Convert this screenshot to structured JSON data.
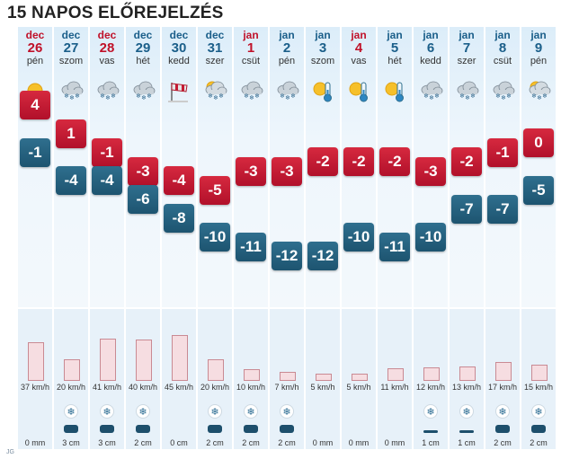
{
  "title": "15 NAPOS ELŐREJELZÉS",
  "footer_mark": "JG",
  "colors": {
    "hi": "#c41a33",
    "lo": "#24607f",
    "weekend": "#c0122a",
    "weekday": "#1b5f8a"
  },
  "days": [
    {
      "month": "dec",
      "day": "26",
      "weekday": "pén",
      "red": true,
      "icon": "sun-icon",
      "hi": "4",
      "lo": "-1",
      "wind": "37 km/h",
      "wind_v": 37,
      "precip": "0 mm",
      "precip_type": "none",
      "precip_v": 0
    },
    {
      "month": "dec",
      "day": "27",
      "weekday": "szom",
      "red": false,
      "icon": "cloud-snow-icon",
      "hi": "1",
      "lo": "-4",
      "wind": "20 km/h",
      "wind_v": 20,
      "precip": "3 cm",
      "precip_type": "snow",
      "precip_v": 3
    },
    {
      "month": "dec",
      "day": "28",
      "weekday": "vas",
      "red": true,
      "icon": "cloud-snow-icon",
      "hi": "-1",
      "lo": "-4",
      "wind": "41 km/h",
      "wind_v": 41,
      "precip": "3 cm",
      "precip_type": "snow",
      "precip_v": 3
    },
    {
      "month": "dec",
      "day": "29",
      "weekday": "hét",
      "red": false,
      "icon": "cloud-snow-icon",
      "hi": "-3",
      "lo": "-6",
      "wind": "40 km/h",
      "wind_v": 40,
      "precip": "2 cm",
      "precip_type": "snow",
      "precip_v": 2
    },
    {
      "month": "dec",
      "day": "30",
      "weekday": "kedd",
      "red": false,
      "icon": "windsock-icon",
      "hi": "-4",
      "lo": "-8",
      "wind": "45 km/h",
      "wind_v": 45,
      "precip": "0 cm",
      "precip_type": "none",
      "precip_v": 0
    },
    {
      "month": "dec",
      "day": "31",
      "weekday": "szer",
      "red": false,
      "icon": "sun-cloud-snow-icon",
      "hi": "-5",
      "lo": "-10",
      "wind": "20 km/h",
      "wind_v": 20,
      "precip": "2 cm",
      "precip_type": "snow",
      "precip_v": 2
    },
    {
      "month": "jan",
      "day": "1",
      "weekday": "csüt",
      "red": true,
      "icon": "cloud-snow-icon",
      "hi": "-3",
      "lo": "-11",
      "wind": "10 km/h",
      "wind_v": 10,
      "precip": "2 cm",
      "precip_type": "snow",
      "precip_v": 2
    },
    {
      "month": "jan",
      "day": "2",
      "weekday": "pén",
      "red": false,
      "icon": "cloud-snow-icon",
      "hi": "-3",
      "lo": "-12",
      "wind": "7 km/h",
      "wind_v": 7,
      "precip": "2 cm",
      "precip_type": "snow",
      "precip_v": 2
    },
    {
      "month": "jan",
      "day": "3",
      "weekday": "szom",
      "red": false,
      "icon": "cold-thermometer-icon",
      "hi": "-2",
      "lo": "-12",
      "wind": "5 km/h",
      "wind_v": 5,
      "precip": "0 mm",
      "precip_type": "none",
      "precip_v": 0
    },
    {
      "month": "jan",
      "day": "4",
      "weekday": "vas",
      "red": true,
      "icon": "cold-thermometer-icon",
      "hi": "-2",
      "lo": "-10",
      "wind": "5 km/h",
      "wind_v": 5,
      "precip": "0 mm",
      "precip_type": "none",
      "precip_v": 0
    },
    {
      "month": "jan",
      "day": "5",
      "weekday": "hét",
      "red": false,
      "icon": "cold-thermometer-icon",
      "hi": "-2",
      "lo": "-11",
      "wind": "11 km/h",
      "wind_v": 11,
      "precip": "0 mm",
      "precip_type": "none",
      "precip_v": 0
    },
    {
      "month": "jan",
      "day": "6",
      "weekday": "kedd",
      "red": false,
      "icon": "cloud-snow-icon",
      "hi": "-3",
      "lo": "-10",
      "wind": "12 km/h",
      "wind_v": 12,
      "precip": "1 cm",
      "precip_type": "snow",
      "precip_v": 1
    },
    {
      "month": "jan",
      "day": "7",
      "weekday": "szer",
      "red": false,
      "icon": "cloud-snow-icon",
      "hi": "-2",
      "lo": "-7",
      "wind": "13 km/h",
      "wind_v": 13,
      "precip": "1 cm",
      "precip_type": "snow",
      "precip_v": 1
    },
    {
      "month": "jan",
      "day": "8",
      "weekday": "csüt",
      "red": false,
      "icon": "cloud-snow-icon",
      "hi": "-1",
      "lo": "-7",
      "wind": "17 km/h",
      "wind_v": 17,
      "precip": "2 cm",
      "precip_type": "snow",
      "precip_v": 2
    },
    {
      "month": "jan",
      "day": "9",
      "weekday": "pén",
      "red": false,
      "icon": "sun-cloud-snow-icon",
      "hi": "0",
      "lo": "-5",
      "wind": "15 km/h",
      "wind_v": 15,
      "precip": "2 cm",
      "precip_type": "snow",
      "precip_v": 2
    }
  ]
}
